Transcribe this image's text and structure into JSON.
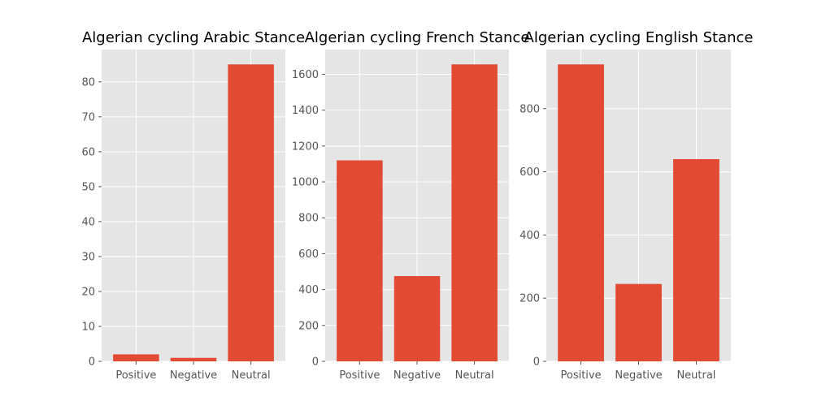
{
  "chart_data": [
    {
      "type": "bar",
      "title": "Algerian cycling Arabic Stance",
      "categories": [
        "Positive",
        "Negative",
        "Neutral"
      ],
      "values": [
        2,
        1,
        85
      ],
      "ylim": [
        0,
        89.25
      ],
      "yticks": [
        0,
        10,
        20,
        30,
        40,
        50,
        60,
        70,
        80
      ],
      "xlabel": "",
      "ylabel": "",
      "grid": true
    },
    {
      "type": "bar",
      "title": "Algerian cycling French Stance",
      "categories": [
        "Positive",
        "Negative",
        "Neutral"
      ],
      "values": [
        1120,
        475,
        1655
      ],
      "ylim": [
        0,
        1737.75
      ],
      "yticks": [
        0,
        200,
        400,
        600,
        800,
        1000,
        1200,
        1400,
        1600
      ],
      "xlabel": "",
      "ylabel": "",
      "grid": true
    },
    {
      "type": "bar",
      "title": "Algerian cycling English Stance",
      "categories": [
        "Positive",
        "Negative",
        "Neutral"
      ],
      "values": [
        940,
        245,
        640
      ],
      "ylim": [
        0,
        987
      ],
      "yticks": [
        0,
        200,
        400,
        600,
        800
      ],
      "xlabel": "",
      "ylabel": "",
      "grid": true
    }
  ],
  "colors": {
    "bar": "#E24A33",
    "axes_bg": "#E5E5E5",
    "grid": "#FFFFFF",
    "tick_text": "#555555",
    "title_text": "#000000"
  }
}
